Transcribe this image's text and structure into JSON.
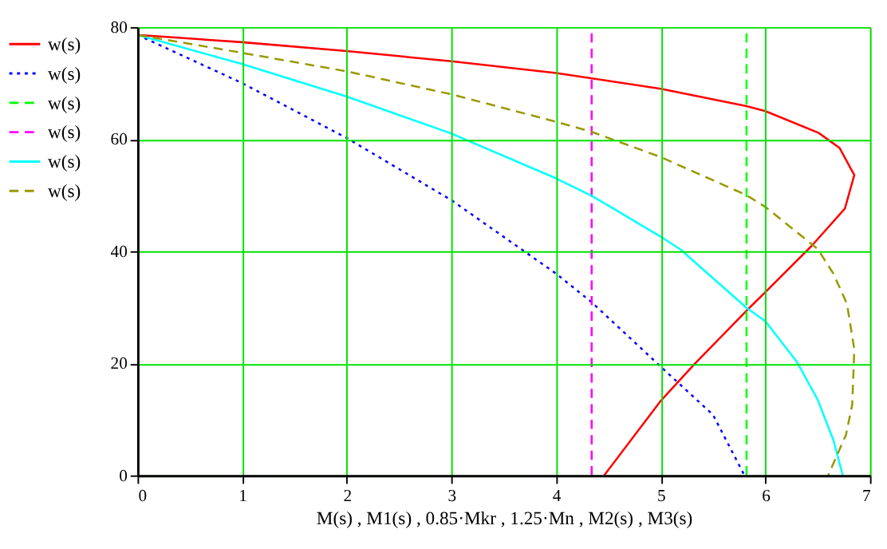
{
  "chart_data": {
    "type": "line",
    "xlabel": "M(s) , M1(s) , 0.85·Mkr , 1.25·Mn , M2(s) , M3(s)",
    "xlim": [
      0,
      7
    ],
    "xticks": [
      0,
      1,
      2,
      3,
      4,
      5,
      6,
      7
    ],
    "ylim": [
      0,
      80
    ],
    "yticks": [
      0,
      20,
      40,
      60,
      80
    ],
    "grid": true,
    "legend": "left",
    "marker": "none",
    "series": [
      {
        "name": "w(s)",
        "color": "#ff0000",
        "line_style": "solid",
        "x": [
          0,
          1,
          2,
          3,
          4,
          5,
          5.82,
          6,
          6.51,
          6.71,
          6.85,
          6.76,
          6.44,
          6,
          5.82,
          5.32,
          5,
          4.46
        ],
        "values": [
          78.6,
          77.3,
          75.7,
          73.9,
          71.8,
          69.0,
          65.9,
          65.0,
          61.1,
          58.4,
          53.6,
          47.6,
          40.9,
          32.7,
          29.4,
          19.8,
          13.3,
          0
        ]
      },
      {
        "name": "w(s)",
        "color": "#0000ff",
        "line_style": "dotted",
        "x": [
          0,
          1,
          2,
          3,
          4,
          4.34,
          5,
          5.5,
          5.8
        ],
        "values": [
          78.6,
          70.0,
          60.2,
          49.1,
          36.0,
          30.9,
          19.4,
          10.8,
          0
        ]
      },
      {
        "name": "w(s)",
        "color": "#00ff00",
        "line_style": "dashed",
        "x": [
          5.82,
          5.82
        ],
        "values": [
          0,
          80
        ]
      },
      {
        "name": "w(s)",
        "color": "#ff00ff",
        "line_style": "dashed",
        "x": [
          4.34,
          4.34
        ],
        "values": [
          0,
          80
        ]
      },
      {
        "name": "w(s)",
        "color": "#00ffff",
        "line_style": "solid",
        "x": [
          0,
          1,
          2,
          3,
          4,
          4.34,
          5,
          5.19,
          5.82,
          6,
          6.3,
          6.5,
          6.65,
          6.74
        ],
        "values": [
          78.6,
          73.4,
          67.6,
          61.0,
          53.0,
          49.9,
          42.6,
          40.3,
          29.9,
          27.5,
          20.3,
          13.5,
          6.3,
          0
        ]
      },
      {
        "name": "w(s)",
        "color": "#999900",
        "line_style": "dashed",
        "x": [
          0,
          1,
          2,
          3,
          4,
          4.34,
          5,
          5.82,
          6,
          6.5,
          6.65,
          6.78,
          6.85,
          6.83,
          6.77,
          6.6
        ],
        "values": [
          78.6,
          75.4,
          72.1,
          68.0,
          63.1,
          61.3,
          56.8,
          50.0,
          47.9,
          40.4,
          36.0,
          30.6,
          22.5,
          12.6,
          7.2,
          0
        ]
      }
    ]
  }
}
